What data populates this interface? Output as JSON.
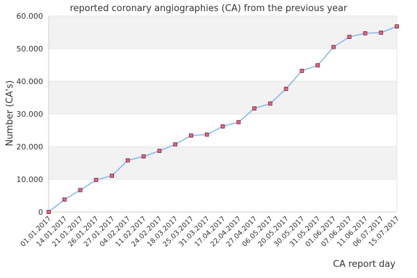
{
  "chart_data": {
    "type": "line",
    "title": "reported coronary angiographies (CA) from the previous year",
    "xlabel": "CA report day",
    "ylabel": "Number (CA's)",
    "ylim": [
      0,
      60000
    ],
    "yticks": [
      "0",
      "10.000",
      "20.000",
      "30.000",
      "40.000",
      "50.000",
      "60.000"
    ],
    "grid": "alternating horizontal bands",
    "legend": "none",
    "colors": {
      "line": "#7cb5ec",
      "marker_fill": "#e8637f",
      "marker_stroke": "#7a1e3a",
      "band": "#f2f2f2",
      "grid": "#e6e6e6"
    },
    "categories": [
      "01.01.2017",
      "14.01.2017",
      "21.01.2017",
      "26.01.2017",
      "27.01.2017",
      "04.02.2017",
      "11.02.2017",
      "24.02.2017",
      "18.03.2017",
      "25.03.2017",
      "31.03.2017",
      "17.04.2017",
      "22.04.2017",
      "27.04.2017",
      "06.05.2017",
      "20.05.2017",
      "30.05.2017",
      "31.05.2017",
      "01.06.2017",
      "07.06.2017",
      "11.06.2017",
      "06.07.2017",
      "15.07.2017"
    ],
    "series": [
      {
        "values": [
          0,
          3800,
          6700,
          9800,
          11100,
          15800,
          17000,
          18700,
          20700,
          23400,
          23700,
          26200,
          27500,
          31700,
          33200,
          37700,
          43200,
          44900,
          50500,
          53600,
          54700,
          54900,
          56800
        ]
      }
    ]
  }
}
